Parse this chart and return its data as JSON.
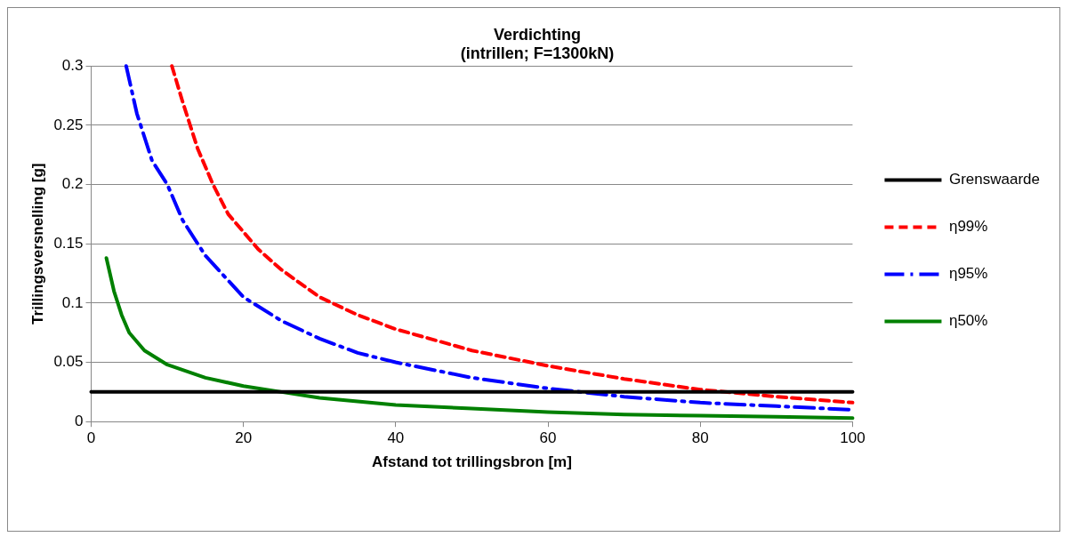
{
  "chart_data": {
    "type": "line",
    "title": "Verdichting\n(intrillen; F=1300kN)",
    "xlabel": "Afstand tot trillingsbron [m]",
    "ylabel": "Trillingsversnelling [g]",
    "xlim": [
      0,
      100
    ],
    "xticks": [
      0,
      20,
      40,
      60,
      80,
      100
    ],
    "ylim": [
      0,
      0.3
    ],
    "yticks": [
      0,
      0.05,
      0.1,
      0.15,
      0.2,
      0.25,
      0.3
    ],
    "grid": "y",
    "legend": "right",
    "marker": "none",
    "series": [
      {
        "name": "Grenswaarde",
        "color": "#000000",
        "line_style": "solid",
        "x": [
          0,
          100
        ],
        "values": [
          0.025,
          0.025
        ]
      },
      {
        "name": "η99%",
        "color": "#ff0000",
        "line_style": "dashed",
        "x": [
          10.6,
          12,
          14,
          16,
          18,
          20,
          22,
          25,
          30,
          35,
          40,
          50,
          60,
          70,
          80,
          90,
          100
        ],
        "values": [
          0.3,
          0.27,
          0.23,
          0.2,
          0.175,
          0.16,
          0.145,
          0.128,
          0.105,
          0.09,
          0.078,
          0.06,
          0.047,
          0.036,
          0.027,
          0.021,
          0.016
        ]
      },
      {
        "name": "η95%",
        "color": "#0000ff",
        "line_style": "dashdot",
        "x": [
          4.6,
          6,
          8,
          10,
          12,
          15,
          20,
          25,
          30,
          35,
          40,
          50,
          60,
          70,
          80,
          90,
          100
        ],
        "values": [
          0.3,
          0.26,
          0.22,
          0.2,
          0.17,
          0.14,
          0.105,
          0.085,
          0.07,
          0.058,
          0.05,
          0.037,
          0.028,
          0.021,
          0.016,
          0.013,
          0.01
        ]
      },
      {
        "name": "η50%",
        "color": "#008000",
        "line_style": "solid",
        "x": [
          2,
          3,
          4,
          5,
          7,
          10,
          15,
          20,
          25,
          30,
          40,
          50,
          60,
          70,
          80,
          90,
          100
        ],
        "values": [
          0.138,
          0.11,
          0.09,
          0.075,
          0.06,
          0.048,
          0.037,
          0.03,
          0.025,
          0.02,
          0.014,
          0.011,
          0.008,
          0.006,
          0.005,
          0.004,
          0.003
        ]
      }
    ]
  }
}
